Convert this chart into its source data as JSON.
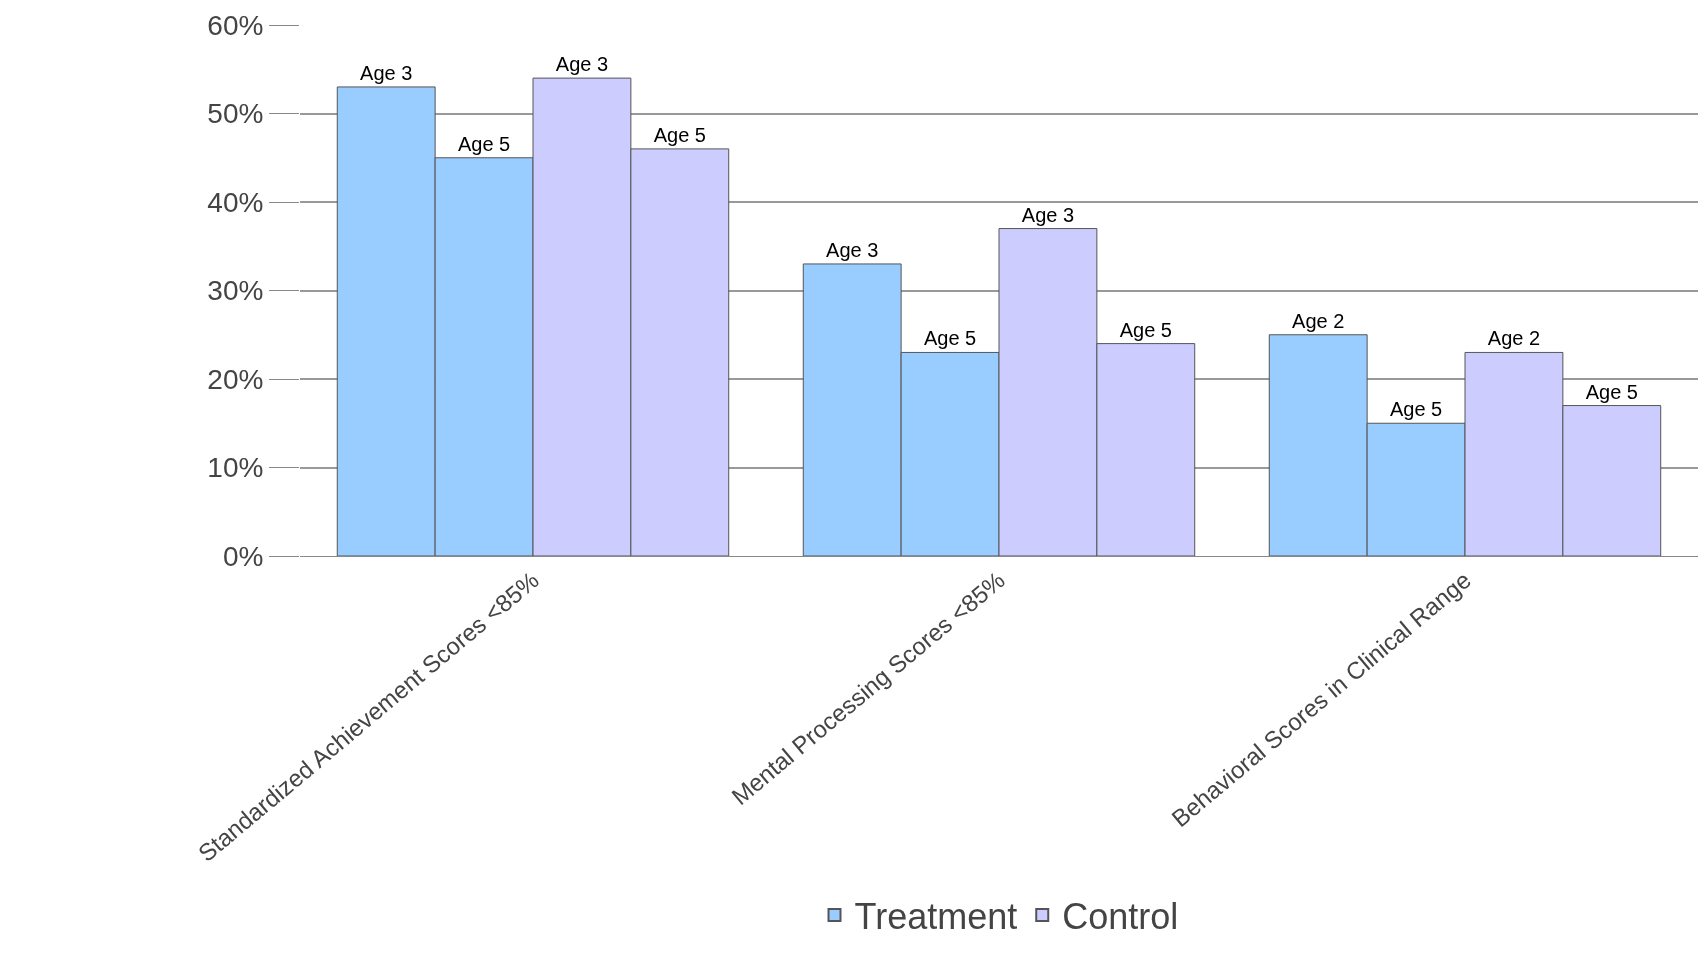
{
  "chart_data": {
    "type": "bar",
    "categories": [
      "Standardized Achievement Scores <85%",
      "Mental Processing Scores <85%",
      "Behavioral Scores in Clinical Range"
    ],
    "series": [
      {
        "name": "Treatment",
        "color": "#99ccff",
        "values": [
          53,
          33,
          25
        ],
        "value_labels": [
          "Age 3",
          "Age 3",
          "Age 2"
        ]
      },
      {
        "color": "#99ccff",
        "values": [
          45,
          23,
          15
        ],
        "value_labels": [
          "Age 5",
          "Age 5",
          "Age 5"
        ]
      },
      {
        "name": "Control",
        "color": "#ccccff",
        "values": [
          54,
          37,
          23
        ],
        "value_labels": [
          "Age 3",
          "Age 3",
          "Age 2"
        ]
      },
      {
        "color": "#ccccff",
        "values": [
          46,
          24,
          17
        ],
        "value_labels": [
          "Age 5",
          "Age 5",
          "Age 5"
        ]
      }
    ],
    "ylim": [
      0,
      60
    ],
    "yticks": [
      {
        "value": 0,
        "label": "0%"
      },
      {
        "value": 10,
        "label": "10%"
      },
      {
        "value": 20,
        "label": "20%"
      },
      {
        "value": 30,
        "label": "30%"
      },
      {
        "value": 40,
        "label": "40%"
      },
      {
        "value": 50,
        "label": "50%"
      },
      {
        "value": 60,
        "label": "60%"
      }
    ],
    "grid": "y",
    "legend": "bottom"
  }
}
